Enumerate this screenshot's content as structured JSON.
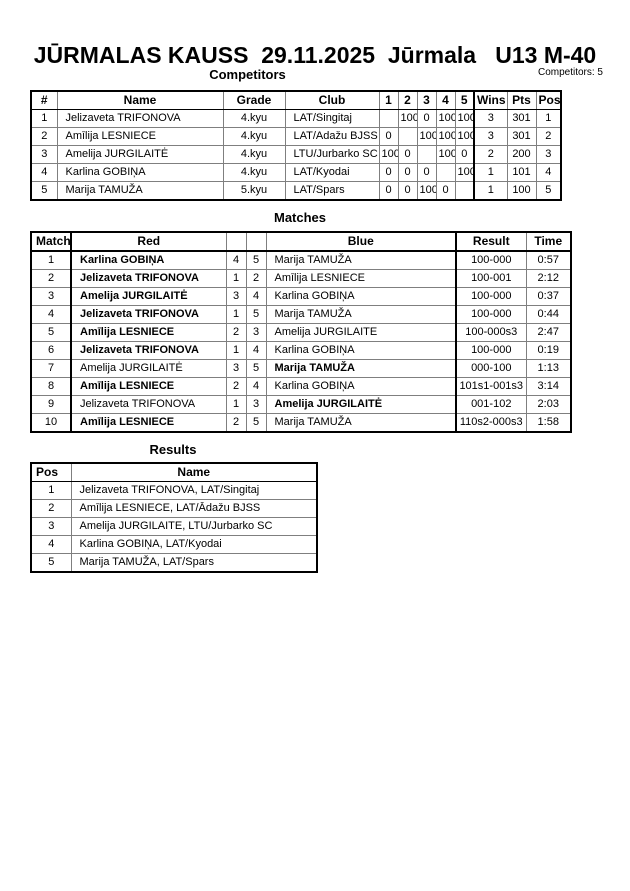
{
  "page": {
    "title": "JŪRMALAS KAUSS  29.11.2025  Jūrmala   U13 M-40",
    "competitors_count": "Competitors: 5"
  },
  "competitors": {
    "section_title": "Competitors",
    "headers": [
      "#",
      "Name",
      "Grade",
      "Club",
      "1",
      "2",
      "3",
      "4",
      "5",
      "Wins",
      "Pts",
      "Pos"
    ],
    "rows": [
      {
        "num": "1",
        "name": "Jelizaveta TRIFONOVA",
        "grade": "4.kyu",
        "club": "LAT/Singitaj",
        "scores": [
          "",
          "100",
          "0",
          "100",
          "100"
        ],
        "wins": "3",
        "pts": "301",
        "pos": "1"
      },
      {
        "num": "2",
        "name": "Amīlija LESNIECE",
        "grade": "4.kyu",
        "club": "LAT/Adažu BJSS",
        "scores": [
          "0",
          "",
          "100",
          "100",
          "100"
        ],
        "wins": "3",
        "pts": "301",
        "pos": "2"
      },
      {
        "num": "3",
        "name": "Amelija JURGILAITĖ",
        "grade": "4.kyu",
        "club": "LTU/Jurbarko SC",
        "scores": [
          "100",
          "0",
          "",
          "100",
          "0"
        ],
        "wins": "2",
        "pts": "200",
        "pos": "3"
      },
      {
        "num": "4",
        "name": "Karlina GOBIŅA",
        "grade": "4.kyu",
        "club": "LAT/Kyodai",
        "scores": [
          "0",
          "0",
          "0",
          "",
          "100"
        ],
        "wins": "1",
        "pts": "101",
        "pos": "4"
      },
      {
        "num": "5",
        "name": "Marija TAMUŽA",
        "grade": "5.kyu",
        "club": "LAT/Spars",
        "scores": [
          "0",
          "0",
          "100",
          "0",
          ""
        ],
        "wins": "1",
        "pts": "100",
        "pos": "5"
      }
    ]
  },
  "matches": {
    "section_title": "Matches",
    "headers": [
      "Match",
      "Red",
      "",
      "",
      "Blue",
      "Result",
      "Time"
    ],
    "rows": [
      {
        "num": "1",
        "red": "Karlina GOBIŅA",
        "red_no": "4",
        "blue_no": "5",
        "blue": "Marija TAMUŽA",
        "result": "100-000",
        "time": "0:57",
        "red_bold": true,
        "blue_bold": false
      },
      {
        "num": "2",
        "red": "Jelizaveta TRIFONOVA",
        "red_no": "1",
        "blue_no": "2",
        "blue": "Amīlija LESNIECE",
        "result": "100-001",
        "time": "2:12",
        "red_bold": true,
        "blue_bold": false
      },
      {
        "num": "3",
        "red": "Amelija JURGILAITĖ",
        "red_no": "3",
        "blue_no": "4",
        "blue": "Karlina GOBIŅA",
        "result": "100-000",
        "time": "0:37",
        "red_bold": true,
        "blue_bold": false
      },
      {
        "num": "4",
        "red": "Jelizaveta TRIFONOVA",
        "red_no": "1",
        "blue_no": "5",
        "blue": "Marija TAMUŽA",
        "result": "100-000",
        "time": "0:44",
        "red_bold": true,
        "blue_bold": false
      },
      {
        "num": "5",
        "red": "Amīlija LESNIECE",
        "red_no": "2",
        "blue_no": "3",
        "blue": "Amelija JURGILAITE",
        "result": "100-000s3",
        "time": "2:47",
        "red_bold": true,
        "blue_bold": false
      },
      {
        "num": "6",
        "red": "Jelizaveta TRIFONOVA",
        "red_no": "1",
        "blue_no": "4",
        "blue": "Karlina GOBIŅA",
        "result": "100-000",
        "time": "0:19",
        "red_bold": true,
        "blue_bold": false
      },
      {
        "num": "7",
        "red": "Amelija JURGILAITĖ",
        "red_no": "3",
        "blue_no": "5",
        "blue": "Marija TAMUŽA",
        "result": "000-100",
        "time": "1:13",
        "red_bold": false,
        "blue_bold": true
      },
      {
        "num": "8",
        "red": "Amīlija LESNIECE",
        "red_no": "2",
        "blue_no": "4",
        "blue": "Karlina GOBIŅA",
        "result": "101s1-001s3",
        "time": "3:14",
        "red_bold": true,
        "blue_bold": false
      },
      {
        "num": "9",
        "red": "Jelizaveta TRIFONOVA",
        "red_no": "1",
        "blue_no": "3",
        "blue": "Amelija JURGILAITĖ",
        "result": "001-102",
        "time": "2:03",
        "red_bold": false,
        "blue_bold": true
      },
      {
        "num": "10",
        "red": "Amīlija LESNIECE",
        "red_no": "2",
        "blue_no": "5",
        "blue": "Marija TAMUŽA",
        "result": "110s2-000s3",
        "time": "1:58",
        "red_bold": true,
        "blue_bold": false
      }
    ]
  },
  "results": {
    "section_title": "Results",
    "headers": [
      "Pos",
      "Name"
    ],
    "rows": [
      {
        "pos": "1",
        "name": "Jelizaveta TRIFONOVA, LAT/Singitaj"
      },
      {
        "pos": "2",
        "name": "Amīlija LESNIECE, LAT/Ādažu BJSS"
      },
      {
        "pos": "3",
        "name": "Amelija JURGILAITE, LTU/Jurbarko SC"
      },
      {
        "pos": "4",
        "name": "Karlina GOBIŅA, LAT/Kyodai"
      },
      {
        "pos": "5",
        "name": "Marija TAMUŽA, LAT/Spars"
      }
    ]
  }
}
